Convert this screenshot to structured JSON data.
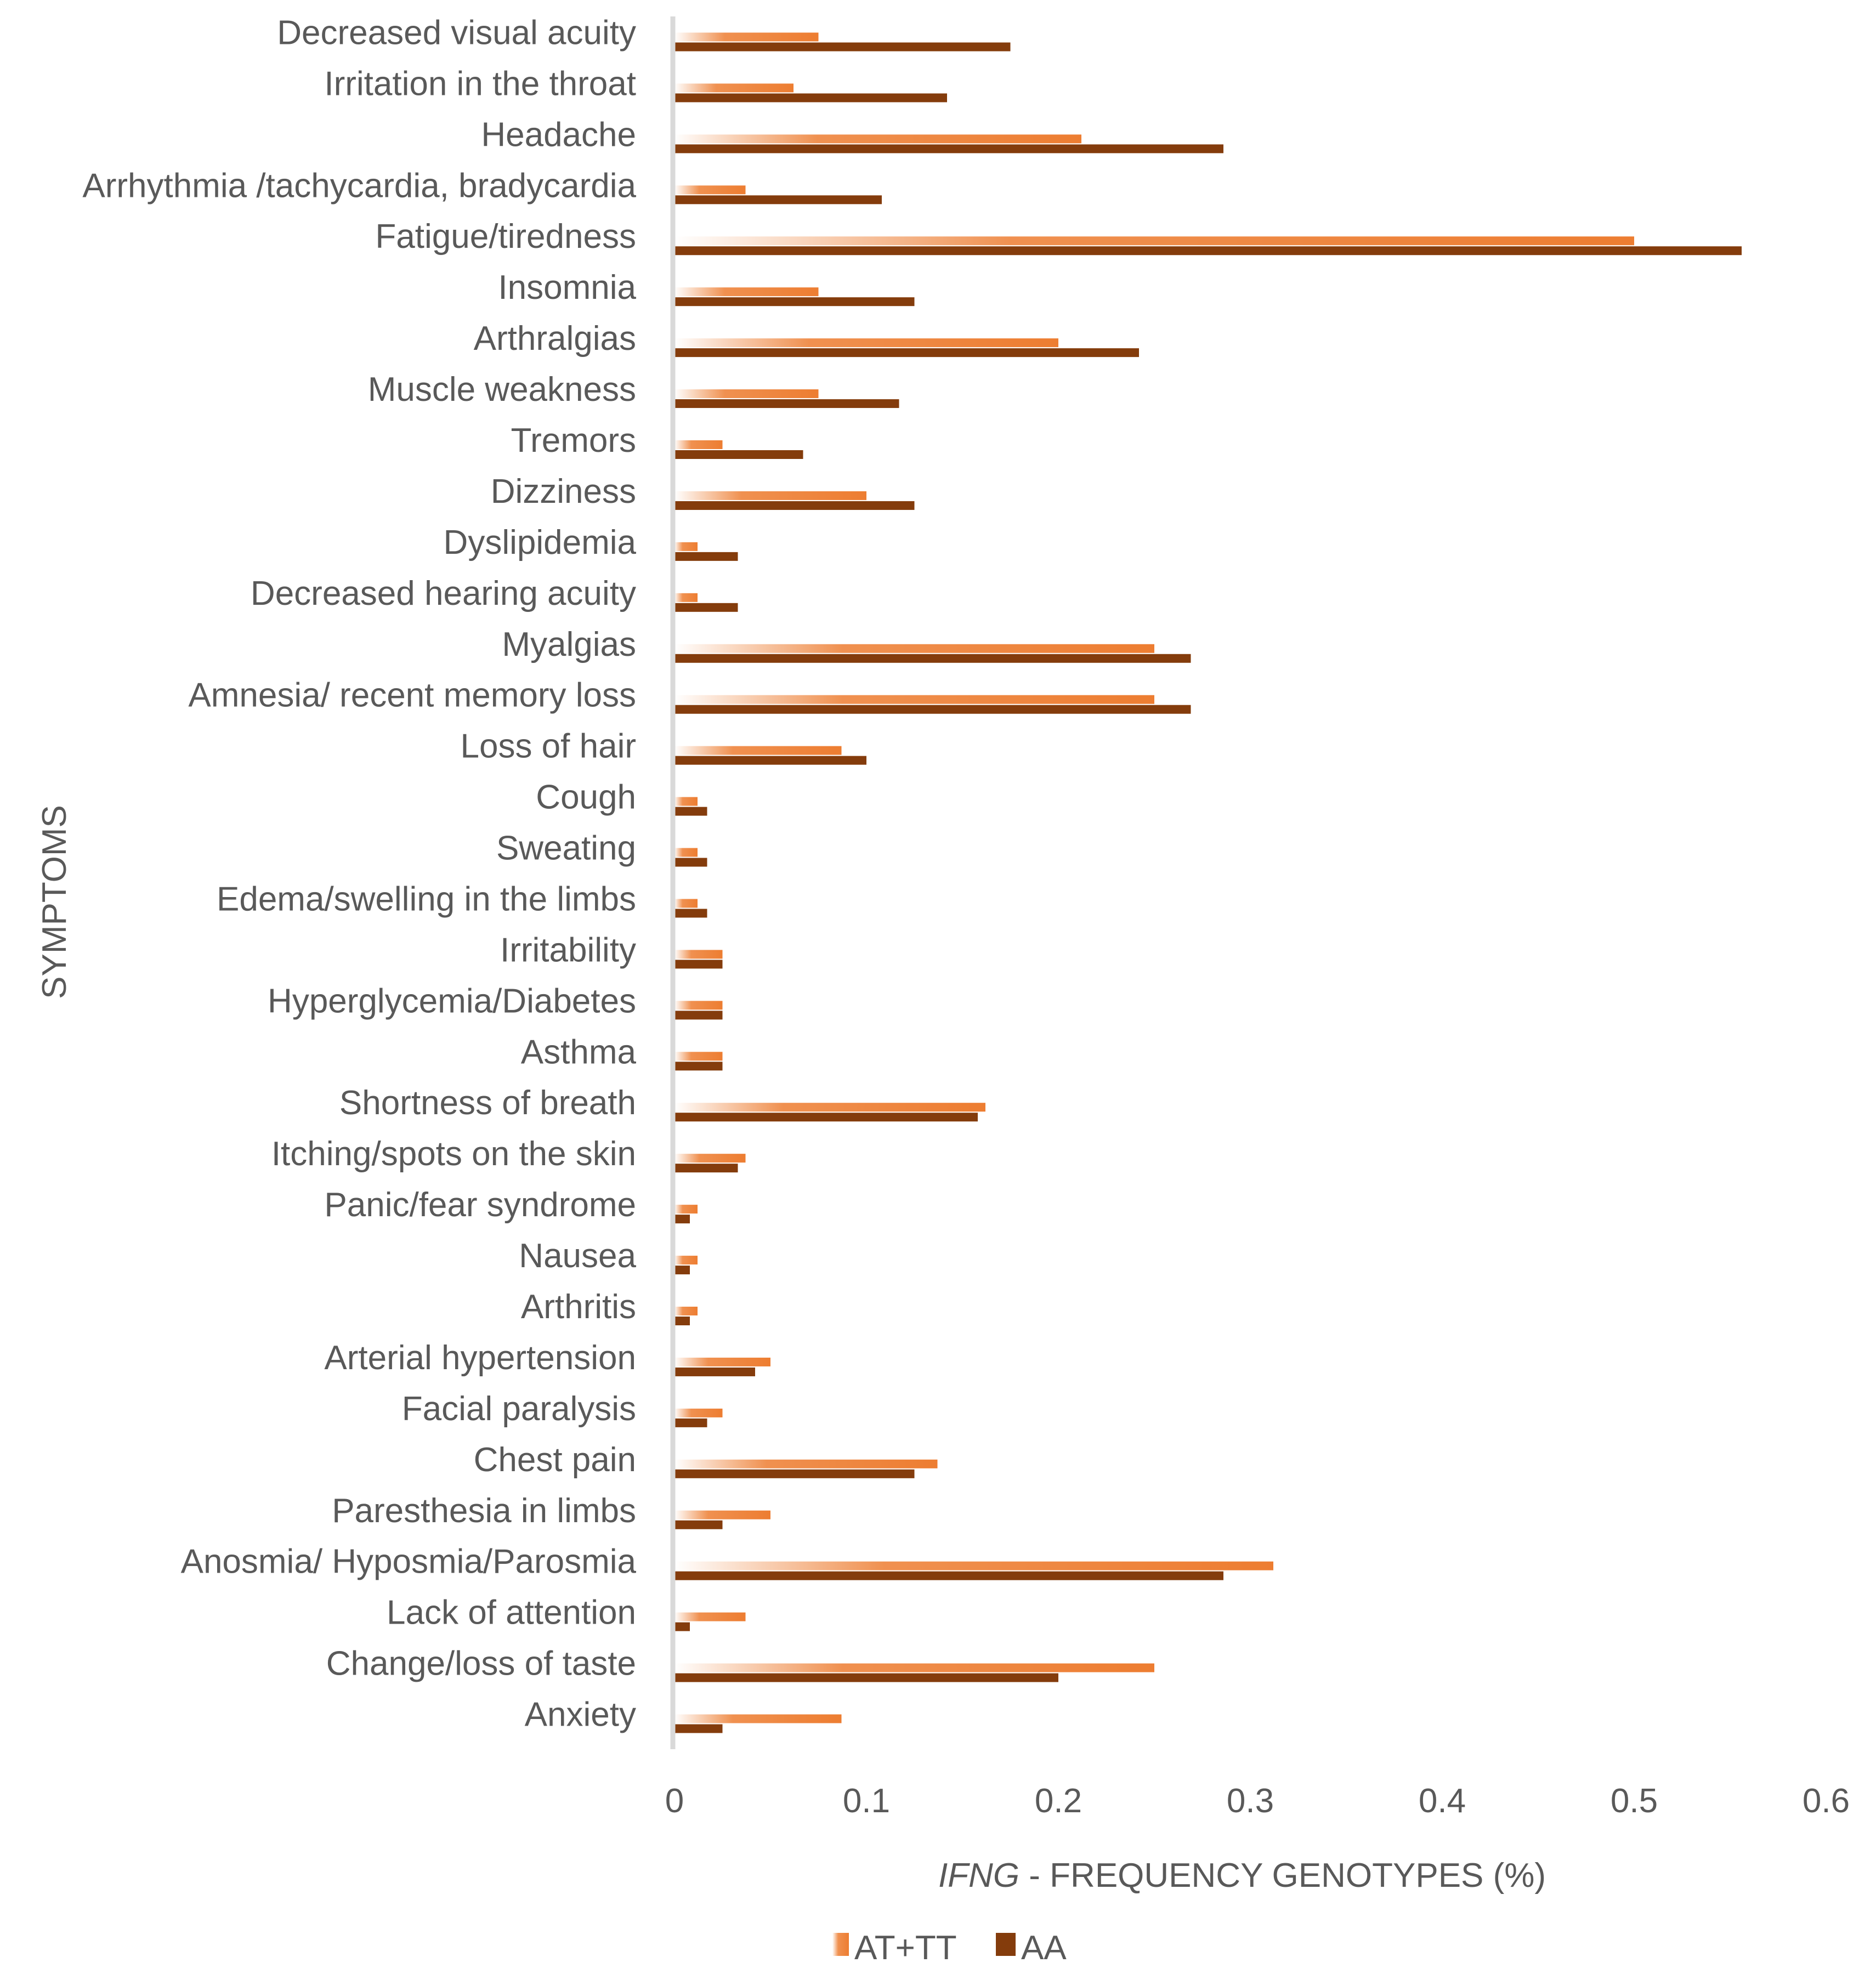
{
  "chart_data": {
    "type": "bar",
    "orientation": "horizontal",
    "title": "",
    "xlabel_italic": "IFNG",
    "xlabel_rest": " - FREQUENCY GENOTYPES (%)",
    "ylabel": "SYMPTOMS",
    "xlim": [
      0,
      0.6
    ],
    "xticks": [
      "0",
      "0.1",
      "0.2",
      "0.3",
      "0.4",
      "0.5",
      "0.6"
    ],
    "xtick_values": [
      0,
      0.1,
      0.2,
      0.3,
      0.4,
      0.5,
      0.6
    ],
    "grid": false,
    "legend_position": "bottom",
    "categories": [
      "Decreased visual acuity",
      "Irritation in the throat",
      "Headache",
      "Arrhythmia /tachycardia, bradycardia",
      "Fatigue/tiredness",
      "Insomnia",
      "Arthralgias",
      "Muscle weakness",
      "Tremors",
      "Dizziness",
      "Dyslipidemia",
      "Decreased hearing acuity",
      "Myalgias",
      "Amnesia/ recent memory loss",
      "Loss of hair",
      "Cough",
      "Sweating",
      "Edema/swelling in the limbs",
      "Irritability",
      "Hyperglycemia/Diabetes",
      "Asthma",
      "Shortness of breath",
      "Itching/spots on the skin",
      "Panic/fear syndrome",
      "Nausea",
      "Arthritis",
      "Arterial hypertension",
      "Facial paralysis",
      "Chest pain",
      "Paresthesia in limbs",
      "Anosmia/ Hyposmia/Parosmia",
      "Lack of attention",
      "Change/loss of taste",
      "Anxiety"
    ],
    "series": [
      {
        "name": "AT+TT",
        "color": "#ED7D31",
        "values": [
          0.075,
          0.062,
          0.212,
          0.037,
          0.5,
          0.075,
          0.2,
          0.075,
          0.025,
          0.1,
          0.012,
          0.012,
          0.25,
          0.25,
          0.087,
          0.012,
          0.012,
          0.012,
          0.025,
          0.025,
          0.025,
          0.162,
          0.037,
          0.012,
          0.012,
          0.012,
          0.05,
          0.025,
          0.137,
          0.05,
          0.312,
          0.037,
          0.25,
          0.087
        ]
      },
      {
        "name": "AA",
        "color": "#843C0C",
        "values": [
          0.175,
          0.142,
          0.286,
          0.108,
          0.556,
          0.125,
          0.242,
          0.117,
          0.067,
          0.125,
          0.033,
          0.033,
          0.269,
          0.269,
          0.1,
          0.017,
          0.017,
          0.017,
          0.025,
          0.025,
          0.025,
          0.158,
          0.033,
          0.008,
          0.008,
          0.008,
          0.042,
          0.017,
          0.125,
          0.025,
          0.286,
          0.008,
          0.2,
          0.025
        ]
      }
    ]
  }
}
